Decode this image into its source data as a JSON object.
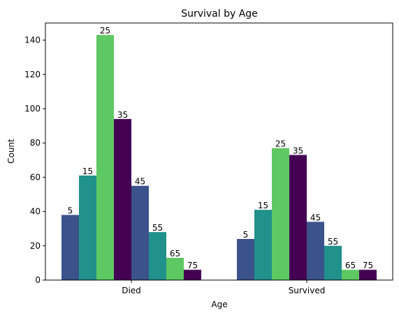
{
  "chart_data": {
    "type": "bar",
    "title": "Survival by Age",
    "xlabel": "Age",
    "ylabel": "Count",
    "categories": [
      "Died",
      "Survived"
    ],
    "ylim": [
      0,
      150
    ],
    "yticks": [
      0,
      20,
      40,
      60,
      80,
      100,
      120,
      140
    ],
    "grid": false,
    "legend": "none",
    "series": [
      {
        "label": "5",
        "color": "#3b528b",
        "values": [
          38,
          24
        ]
      },
      {
        "label": "15",
        "color": "#21918c",
        "values": [
          61,
          41
        ]
      },
      {
        "label": "25",
        "color": "#5ec962",
        "values": [
          143,
          77
        ]
      },
      {
        "label": "35",
        "color": "#440154",
        "values": [
          94,
          73
        ]
      },
      {
        "label": "45",
        "color": "#3b528b",
        "values": [
          55,
          34
        ]
      },
      {
        "label": "55",
        "color": "#21918c",
        "values": [
          28,
          20
        ]
      },
      {
        "label": "65",
        "color": "#5ec962",
        "values": [
          13,
          6
        ]
      },
      {
        "label": "75",
        "color": "#440154",
        "values": [
          6,
          6
        ]
      }
    ]
  }
}
